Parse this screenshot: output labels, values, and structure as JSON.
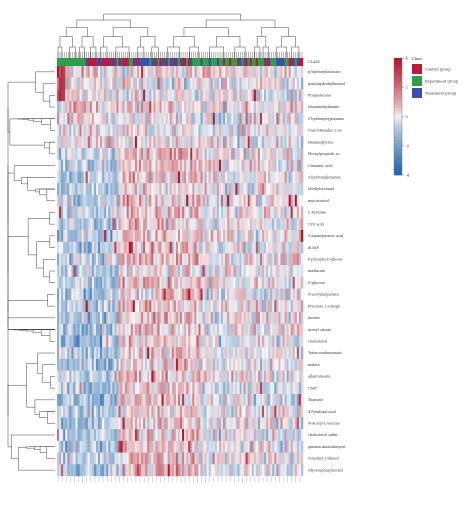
{
  "chart_data": {
    "type": "heatmap",
    "title": "",
    "xlabel": "",
    "ylabel": "",
    "annotation_track": "CLASS",
    "rows": [
      "CLASS",
      "p-hydroxybenzoate",
      "pentahydroxyflavanol",
      "Progesterone",
      "Hexamethylamine",
      "5-hydroxytryptamine",
      "trans-Hexadec-2-en",
      "Hexanoglycine",
      "Phenylpropiolic ac",
      "Cinnamic acid",
      "3-hydroxyglutarate",
      "Methylcrotonyl",
      "myo-inositol",
      "L-Tyrosine",
      "Uric acid",
      "3-Aminopyruvic acid",
      "dUMP",
      "6-phospho-D-glucon",
      "azelaicate",
      "D-glucose",
      "N-acetylaspartate",
      "Fructose 1,6-bisph",
      "lactate",
      "Acetyl citrate",
      "cholesterol",
      "Tetracosahexaenoic",
      "malate",
      "allantoinoate",
      "UMP",
      "Thymine",
      "4-Pyridoxal acid",
      "N-Acetyl-L-leucine",
      "cholesterol sulfat",
      "gamma-Aminobutyrat",
      "5-methyl-2-thiouri",
      "Glycerophosphochol"
    ],
    "columns_count": 120,
    "color_scale": {
      "min": -4,
      "max": 4,
      "ticks": [
        -4,
        -2,
        0,
        2,
        4
      ],
      "low_color": "#2166ac",
      "mid_color": "#f7f7f7",
      "high_color": "#b2182b"
    },
    "groups": [
      {
        "name": "Control group",
        "color": "#b71c3c"
      },
      {
        "name": "Experiment group",
        "color": "#2e9e4a"
      },
      {
        "name": "Treatment group",
        "color": "#3c4fa8"
      }
    ],
    "legend": {
      "title": "Class",
      "placement": "right"
    }
  }
}
